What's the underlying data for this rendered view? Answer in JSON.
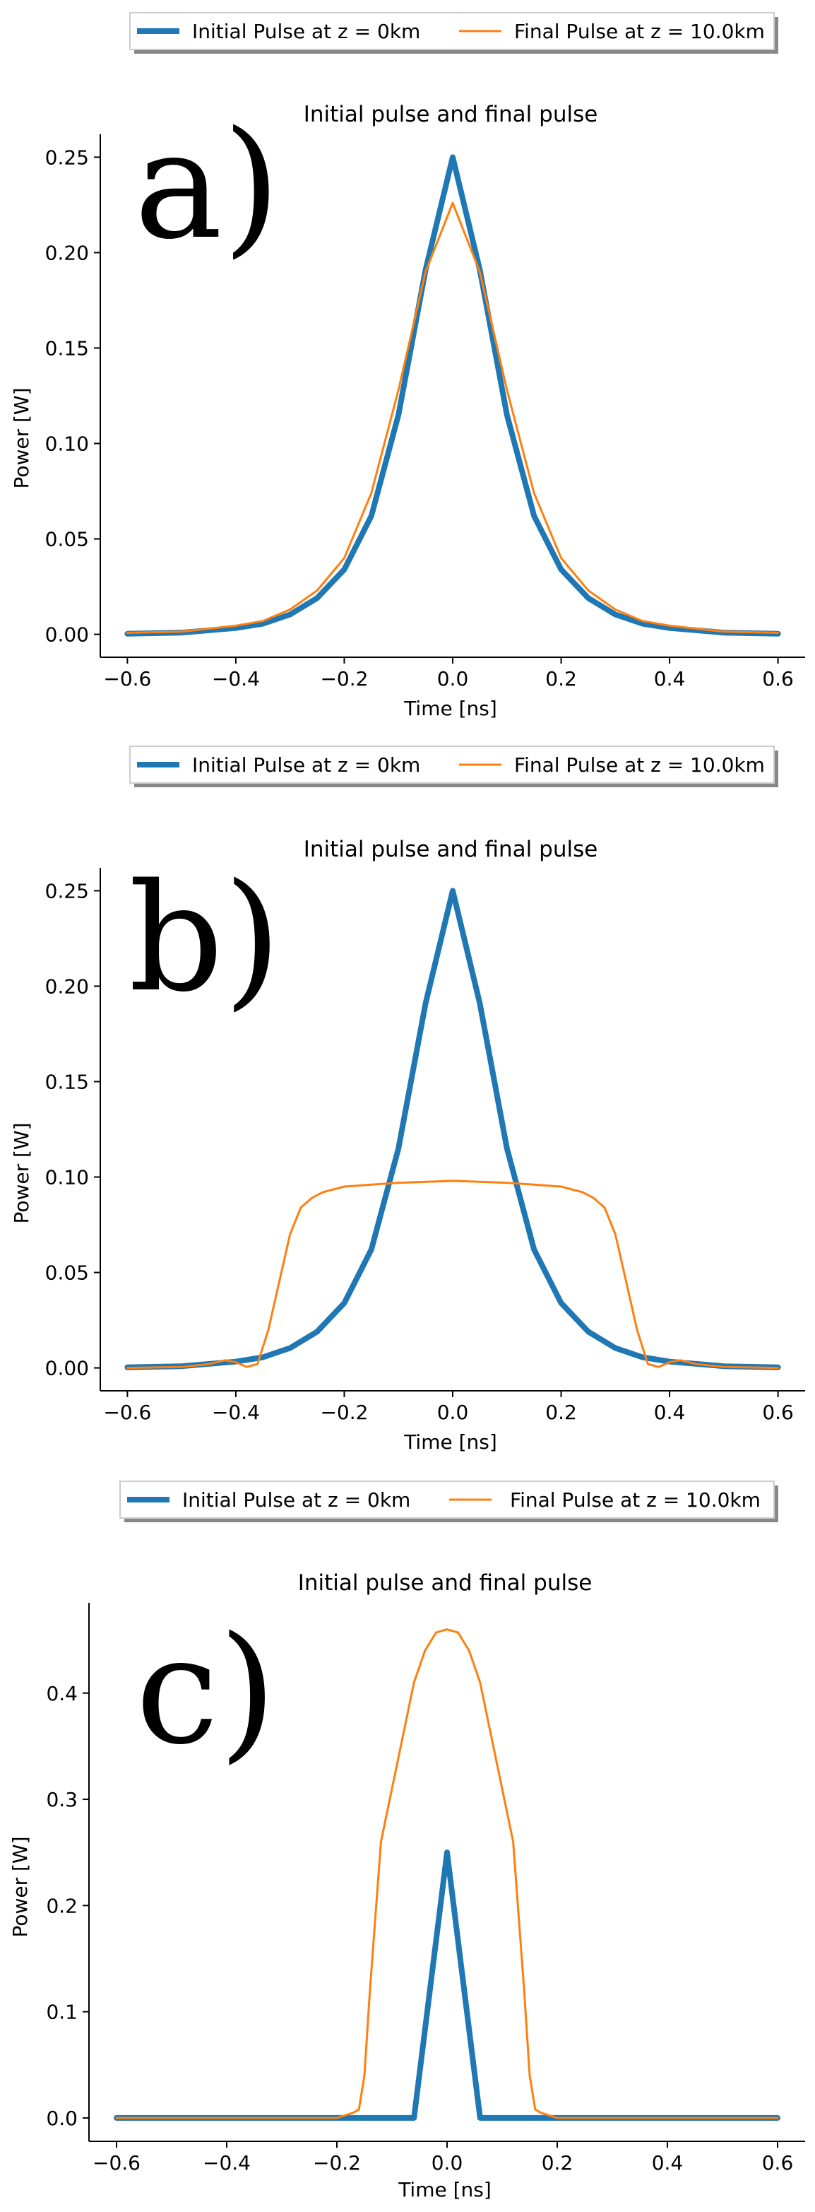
{
  "colors": {
    "initial": "#1f77b4",
    "final": "#ff7f0e",
    "axis": "#000000"
  },
  "chart_data": [
    {
      "type": "line",
      "panel_label": "a)",
      "title": "Initial pulse and final pulse",
      "xlabel": "Time [ns]",
      "ylabel": "Power [W]",
      "xlim": [
        -0.65,
        0.65
      ],
      "ylim": [
        -0.012,
        0.262
      ],
      "xticks": [
        -0.6,
        -0.4,
        -0.2,
        0.0,
        0.2,
        0.4,
        0.6
      ],
      "xtick_labels": [
        "−0.6",
        "−0.4",
        "−0.2",
        "0.0",
        "0.2",
        "0.4",
        "0.6"
      ],
      "yticks": [
        0.0,
        0.05,
        0.1,
        0.15,
        0.2,
        0.25
      ],
      "ytick_labels": [
        "0.00",
        "0.05",
        "0.10",
        "0.15",
        "0.20",
        "0.25"
      ],
      "legend": [
        "Initial Pulse at z = 0km",
        "Final Pulse at z = 10.0km"
      ],
      "legend_position": "above",
      "series": [
        {
          "name": "Initial Pulse at z = 0km",
          "x": [
            -0.6,
            -0.5,
            -0.4,
            -0.35,
            -0.3,
            -0.25,
            -0.2,
            -0.15,
            -0.1,
            -0.05,
            0.0,
            0.05,
            0.1,
            0.15,
            0.2,
            0.25,
            0.3,
            0.35,
            0.4,
            0.5,
            0.6
          ],
          "values": [
            0.0003,
            0.0009,
            0.0033,
            0.0056,
            0.0104,
            0.019,
            0.034,
            0.062,
            0.115,
            0.191,
            0.25,
            0.191,
            0.115,
            0.062,
            0.034,
            0.019,
            0.0104,
            0.0056,
            0.0033,
            0.0009,
            0.0003
          ]
        },
        {
          "name": "Final Pulse at z = 10.0km",
          "x": [
            -0.6,
            -0.5,
            -0.4,
            -0.35,
            -0.3,
            -0.25,
            -0.2,
            -0.15,
            -0.1,
            -0.05,
            0.0,
            0.05,
            0.1,
            0.15,
            0.2,
            0.25,
            0.3,
            0.35,
            0.4,
            0.5,
            0.6
          ],
          "values": [
            0.0008,
            0.0014,
            0.0045,
            0.007,
            0.013,
            0.023,
            0.04,
            0.074,
            0.128,
            0.19,
            0.226,
            0.19,
            0.128,
            0.074,
            0.04,
            0.023,
            0.013,
            0.007,
            0.0045,
            0.0014,
            0.0008
          ]
        }
      ]
    },
    {
      "type": "line",
      "panel_label": "b)",
      "title": "Initial pulse and final pulse",
      "xlabel": "Time [ns]",
      "ylabel": "Power [W]",
      "xlim": [
        -0.65,
        0.65
      ],
      "ylim": [
        -0.012,
        0.262
      ],
      "xticks": [
        -0.6,
        -0.4,
        -0.2,
        0.0,
        0.2,
        0.4,
        0.6
      ],
      "xtick_labels": [
        "−0.6",
        "−0.4",
        "−0.2",
        "0.0",
        "0.2",
        "0.4",
        "0.6"
      ],
      "yticks": [
        0.0,
        0.05,
        0.1,
        0.15,
        0.2,
        0.25
      ],
      "ytick_labels": [
        "0.00",
        "0.05",
        "0.10",
        "0.15",
        "0.20",
        "0.25"
      ],
      "legend": [
        "Initial Pulse at z = 0km",
        "Final Pulse at z = 10.0km"
      ],
      "legend_position": "above",
      "series": [
        {
          "name": "Initial Pulse at z = 0km",
          "x": [
            -0.6,
            -0.5,
            -0.4,
            -0.35,
            -0.3,
            -0.25,
            -0.2,
            -0.15,
            -0.1,
            -0.05,
            0.0,
            0.05,
            0.1,
            0.15,
            0.2,
            0.25,
            0.3,
            0.35,
            0.4,
            0.5,
            0.6
          ],
          "values": [
            0.0003,
            0.0009,
            0.0033,
            0.0056,
            0.0104,
            0.019,
            0.034,
            0.062,
            0.115,
            0.191,
            0.25,
            0.191,
            0.115,
            0.062,
            0.034,
            0.019,
            0.0104,
            0.0056,
            0.0033,
            0.0009,
            0.0003
          ]
        },
        {
          "name": "Final Pulse at z = 10.0km",
          "x": [
            -0.6,
            -0.5,
            -0.45,
            -0.42,
            -0.4,
            -0.38,
            -0.36,
            -0.34,
            -0.32,
            -0.3,
            -0.28,
            -0.26,
            -0.24,
            -0.2,
            -0.1,
            0.0,
            0.1,
            0.2,
            0.24,
            0.26,
            0.28,
            0.3,
            0.32,
            0.34,
            0.36,
            0.38,
            0.4,
            0.42,
            0.45,
            0.5,
            0.6
          ],
          "values": [
            0.0,
            0.0005,
            0.002,
            0.004,
            0.003,
            0.0005,
            0.002,
            0.02,
            0.045,
            0.07,
            0.084,
            0.089,
            0.092,
            0.095,
            0.097,
            0.098,
            0.097,
            0.095,
            0.092,
            0.089,
            0.084,
            0.07,
            0.045,
            0.02,
            0.002,
            0.0005,
            0.003,
            0.004,
            0.002,
            0.0005,
            0.0
          ]
        }
      ]
    },
    {
      "type": "line",
      "panel_label": "c)",
      "title": "Initial pulse and final pulse",
      "xlabel": "Time [ns]",
      "ylabel": "Power [W]",
      "xlim": [
        -0.65,
        0.65
      ],
      "ylim": [
        -0.022,
        0.485
      ],
      "xticks": [
        -0.6,
        -0.4,
        -0.2,
        0.0,
        0.2,
        0.4,
        0.6
      ],
      "xtick_labels": [
        "−0.6",
        "−0.4",
        "−0.2",
        "0.0",
        "0.2",
        "0.4",
        "0.6"
      ],
      "yticks": [
        0.0,
        0.1,
        0.2,
        0.3,
        0.4
      ],
      "ytick_labels": [
        "0.0",
        "0.1",
        "0.2",
        "0.3",
        "0.4"
      ],
      "legend": [
        "Initial Pulse at z = 0km",
        "Final Pulse at z = 10.0km"
      ],
      "legend_position": "above",
      "series": [
        {
          "name": "Initial Pulse at z = 0km",
          "x": [
            -0.6,
            -0.06,
            0.0,
            0.06,
            0.6
          ],
          "values": [
            0.0,
            0.0,
            0.25,
            0.0,
            0.0
          ]
        },
        {
          "name": "Final Pulse at z = 10.0km",
          "x": [
            -0.6,
            -0.2,
            -0.17,
            -0.16,
            -0.15,
            -0.14,
            -0.12,
            -0.1,
            -0.08,
            -0.06,
            -0.04,
            -0.02,
            0.0,
            0.02,
            0.04,
            0.06,
            0.08,
            0.1,
            0.12,
            0.14,
            0.15,
            0.16,
            0.17,
            0.2,
            0.6
          ],
          "values": [
            0.0,
            0.0,
            0.005,
            0.008,
            0.04,
            0.12,
            0.26,
            0.31,
            0.36,
            0.41,
            0.44,
            0.457,
            0.46,
            0.457,
            0.44,
            0.41,
            0.36,
            0.31,
            0.26,
            0.12,
            0.04,
            0.008,
            0.005,
            0.0,
            0.0
          ]
        }
      ]
    }
  ]
}
